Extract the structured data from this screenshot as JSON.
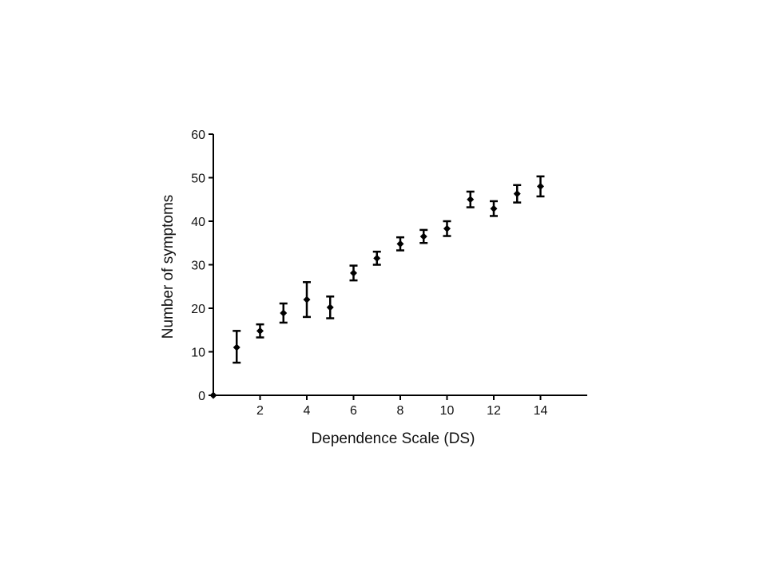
{
  "chart_data": {
    "type": "scatter",
    "title": "",
    "xlabel": "Dependence Scale (DS)",
    "ylabel": "Number of symptoms",
    "xlim": [
      0,
      16
    ],
    "ylim": [
      0,
      60
    ],
    "x_ticks": [
      2,
      4,
      6,
      8,
      10,
      12,
      14
    ],
    "y_ticks": [
      0,
      10,
      20,
      30,
      40,
      50,
      60
    ],
    "grid": false,
    "legend": "none",
    "marker": "diamond",
    "error_bars": true,
    "color": "#000000",
    "series": [
      {
        "points": [
          {
            "x": 0,
            "y": 0,
            "err_low": 0,
            "err_high": 0
          },
          {
            "x": 1,
            "y": 11.0,
            "err_low": 3.5,
            "err_high": 3.8
          },
          {
            "x": 2,
            "y": 14.8,
            "err_low": 1.5,
            "err_high": 1.5
          },
          {
            "x": 3,
            "y": 18.9,
            "err_low": 2.2,
            "err_high": 2.2
          },
          {
            "x": 4,
            "y": 22.0,
            "err_low": 4.0,
            "err_high": 4.0
          },
          {
            "x": 5,
            "y": 20.2,
            "err_low": 2.5,
            "err_high": 2.5
          },
          {
            "x": 6,
            "y": 28.1,
            "err_low": 1.7,
            "err_high": 1.7
          },
          {
            "x": 7,
            "y": 31.5,
            "err_low": 1.5,
            "err_high": 1.5
          },
          {
            "x": 8,
            "y": 34.8,
            "err_low": 1.5,
            "err_high": 1.5
          },
          {
            "x": 9,
            "y": 36.5,
            "err_low": 1.5,
            "err_high": 1.5
          },
          {
            "x": 10,
            "y": 38.3,
            "err_low": 1.7,
            "err_high": 1.7
          },
          {
            "x": 11,
            "y": 45.0,
            "err_low": 1.8,
            "err_high": 1.8
          },
          {
            "x": 12,
            "y": 42.9,
            "err_low": 1.7,
            "err_high": 1.7
          },
          {
            "x": 13,
            "y": 46.3,
            "err_low": 2.0,
            "err_high": 2.0
          },
          {
            "x": 14,
            "y": 48.0,
            "err_low": 2.3,
            "err_high": 2.3
          }
        ]
      }
    ]
  }
}
